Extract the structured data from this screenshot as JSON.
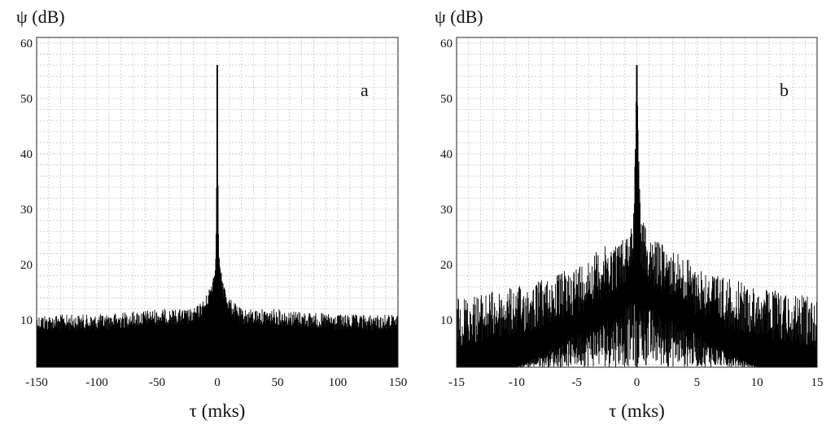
{
  "chart_data": [
    {
      "type": "line",
      "panel_label": "a",
      "ylabel": "ψ (dB)",
      "xlabel": "τ (mks)",
      "xlim": [
        -150,
        150
      ],
      "ylim": [
        1.5,
        61
      ],
      "xticks": [
        -150,
        -100,
        -50,
        0,
        50,
        100,
        150
      ],
      "yticks": [
        10,
        20,
        30,
        40,
        50,
        60
      ],
      "grid": true,
      "series": [
        {
          "values_description_points": [
            {
              "x": -150,
              "y": 11
            },
            {
              "x": -100,
              "y": 11
            },
            {
              "x": -50,
              "y": 12
            },
            {
              "x": -20,
              "y": 12
            },
            {
              "x": -10,
              "y": 14
            },
            {
              "x": -5,
              "y": 17
            },
            {
              "x": -2,
              "y": 20
            },
            {
              "x": -1,
              "y": 26
            },
            {
              "x": 0,
              "y": 56
            },
            {
              "x": 1,
              "y": 26
            },
            {
              "x": 2,
              "y": 20
            },
            {
              "x": 5,
              "y": 17
            },
            {
              "x": 10,
              "y": 14
            },
            {
              "x": 20,
              "y": 12
            },
            {
              "x": 50,
              "y": 12
            },
            {
              "x": 100,
              "y": 11
            },
            {
              "x": 150,
              "y": 11
            }
          ]
        }
      ]
    },
    {
      "type": "line",
      "panel_label": "b",
      "ylabel": "ψ (dB)",
      "xlabel": "τ (mks)",
      "xlim": [
        -15,
        15
      ],
      "ylim": [
        1.5,
        61
      ],
      "xticks": [
        -15,
        -10,
        -5,
        0,
        5,
        10,
        15
      ],
      "yticks": [
        10,
        20,
        30,
        40,
        50,
        60
      ],
      "grid": true,
      "series": [
        {
          "values_description_points": [
            {
              "x": -15,
              "y": 14
            },
            {
              "x": -10,
              "y": 16
            },
            {
              "x": -7,
              "y": 18
            },
            {
              "x": -5,
              "y": 20
            },
            {
              "x": -3,
              "y": 23
            },
            {
              "x": -1,
              "y": 25
            },
            {
              "x": -0.3,
              "y": 29
            },
            {
              "x": 0,
              "y": 56
            },
            {
              "x": 0.3,
              "y": 29
            },
            {
              "x": 1,
              "y": 25
            },
            {
              "x": 3,
              "y": 23
            },
            {
              "x": 5,
              "y": 20
            },
            {
              "x": 7,
              "y": 18
            },
            {
              "x": 10,
              "y": 16
            },
            {
              "x": 15,
              "y": 14
            }
          ]
        }
      ]
    }
  ]
}
